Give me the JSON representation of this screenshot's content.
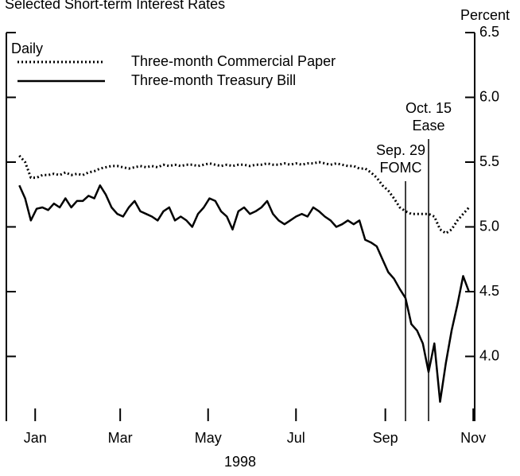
{
  "chart_data": {
    "type": "line",
    "title": "Selected Short-term Interest Rates",
    "y_axis_label": "Percent",
    "x_axis_label": "1998",
    "frequency_label": "Daily",
    "xlim": [
      -5,
      320
    ],
    "xticks": [
      {
        "value": 15,
        "label": "Jan"
      },
      {
        "value": 74,
        "label": "Mar"
      },
      {
        "value": 135,
        "label": "May"
      },
      {
        "value": 196,
        "label": "Jul"
      },
      {
        "value": 258,
        "label": "Sep"
      },
      {
        "value": 319,
        "label": "Nov"
      }
    ],
    "ylim": [
      3.5,
      6.5
    ],
    "yticks": [
      {
        "value": 4,
        "label": "4.0"
      },
      4.5,
      {
        "value": 5,
        "label": "5.0"
      },
      5.5,
      {
        "value": 6,
        "label": "6.0"
      },
      6.5
    ],
    "annotations": [
      {
        "x": 272,
        "lines": [
          "Sep. 29",
          "FOMC"
        ]
      },
      {
        "x": 288,
        "lines": [
          "Oct. 15",
          "Ease"
        ]
      }
    ],
    "x": [
      4,
      8,
      12,
      16,
      20,
      24,
      28,
      32,
      36,
      40,
      44,
      48,
      52,
      56,
      60,
      64,
      68,
      72,
      76,
      80,
      84,
      88,
      92,
      96,
      100,
      104,
      108,
      112,
      116,
      120,
      124,
      128,
      132,
      136,
      140,
      144,
      148,
      152,
      156,
      160,
      164,
      168,
      172,
      176,
      180,
      184,
      188,
      192,
      196,
      200,
      204,
      208,
      212,
      216,
      220,
      224,
      228,
      232,
      236,
      240,
      244,
      248,
      252,
      256,
      260,
      264,
      268,
      272,
      276,
      280,
      284,
      288,
      292,
      296,
      300,
      304,
      308,
      312,
      316
    ],
    "series": [
      {
        "name": "Three-month Commercial Paper",
        "color": "#000000",
        "dash": "dotted",
        "values": [
          5.55,
          5.5,
          5.38,
          5.38,
          5.4,
          5.4,
          5.41,
          5.4,
          5.42,
          5.4,
          5.41,
          5.4,
          5.42,
          5.43,
          5.45,
          5.46,
          5.47,
          5.47,
          5.46,
          5.45,
          5.46,
          5.47,
          5.46,
          5.47,
          5.46,
          5.48,
          5.47,
          5.48,
          5.47,
          5.48,
          5.48,
          5.47,
          5.48,
          5.49,
          5.48,
          5.47,
          5.48,
          5.47,
          5.48,
          5.48,
          5.47,
          5.48,
          5.48,
          5.49,
          5.48,
          5.48,
          5.49,
          5.48,
          5.49,
          5.48,
          5.49,
          5.49,
          5.5,
          5.49,
          5.48,
          5.49,
          5.48,
          5.47,
          5.47,
          5.45,
          5.45,
          5.42,
          5.38,
          5.32,
          5.28,
          5.22,
          5.15,
          5.12,
          5.1,
          5.1,
          5.1,
          5.1,
          5.08,
          4.98,
          4.95,
          4.98,
          5.05,
          5.1,
          5.15
        ]
      },
      {
        "name": "Three-month Treasury Bill",
        "color": "#000000",
        "dash": "solid",
        "values": [
          5.32,
          5.22,
          5.05,
          5.14,
          5.15,
          5.13,
          5.18,
          5.15,
          5.22,
          5.15,
          5.2,
          5.2,
          5.24,
          5.22,
          5.32,
          5.25,
          5.15,
          5.1,
          5.08,
          5.15,
          5.2,
          5.12,
          5.1,
          5.08,
          5.05,
          5.12,
          5.15,
          5.05,
          5.08,
          5.05,
          5.0,
          5.1,
          5.15,
          5.22,
          5.2,
          5.12,
          5.08,
          4.98,
          5.12,
          5.15,
          5.1,
          5.12,
          5.15,
          5.2,
          5.1,
          5.05,
          5.02,
          5.05,
          5.08,
          5.1,
          5.08,
          5.15,
          5.12,
          5.08,
          5.05,
          5.0,
          5.02,
          5.05,
          5.02,
          5.05,
          4.9,
          4.88,
          4.85,
          4.75,
          4.65,
          4.6,
          4.52,
          4.45,
          4.25,
          4.2,
          4.1,
          3.88,
          4.1,
          3.65,
          3.95,
          4.2,
          4.4,
          4.62,
          4.5
        ]
      }
    ]
  }
}
